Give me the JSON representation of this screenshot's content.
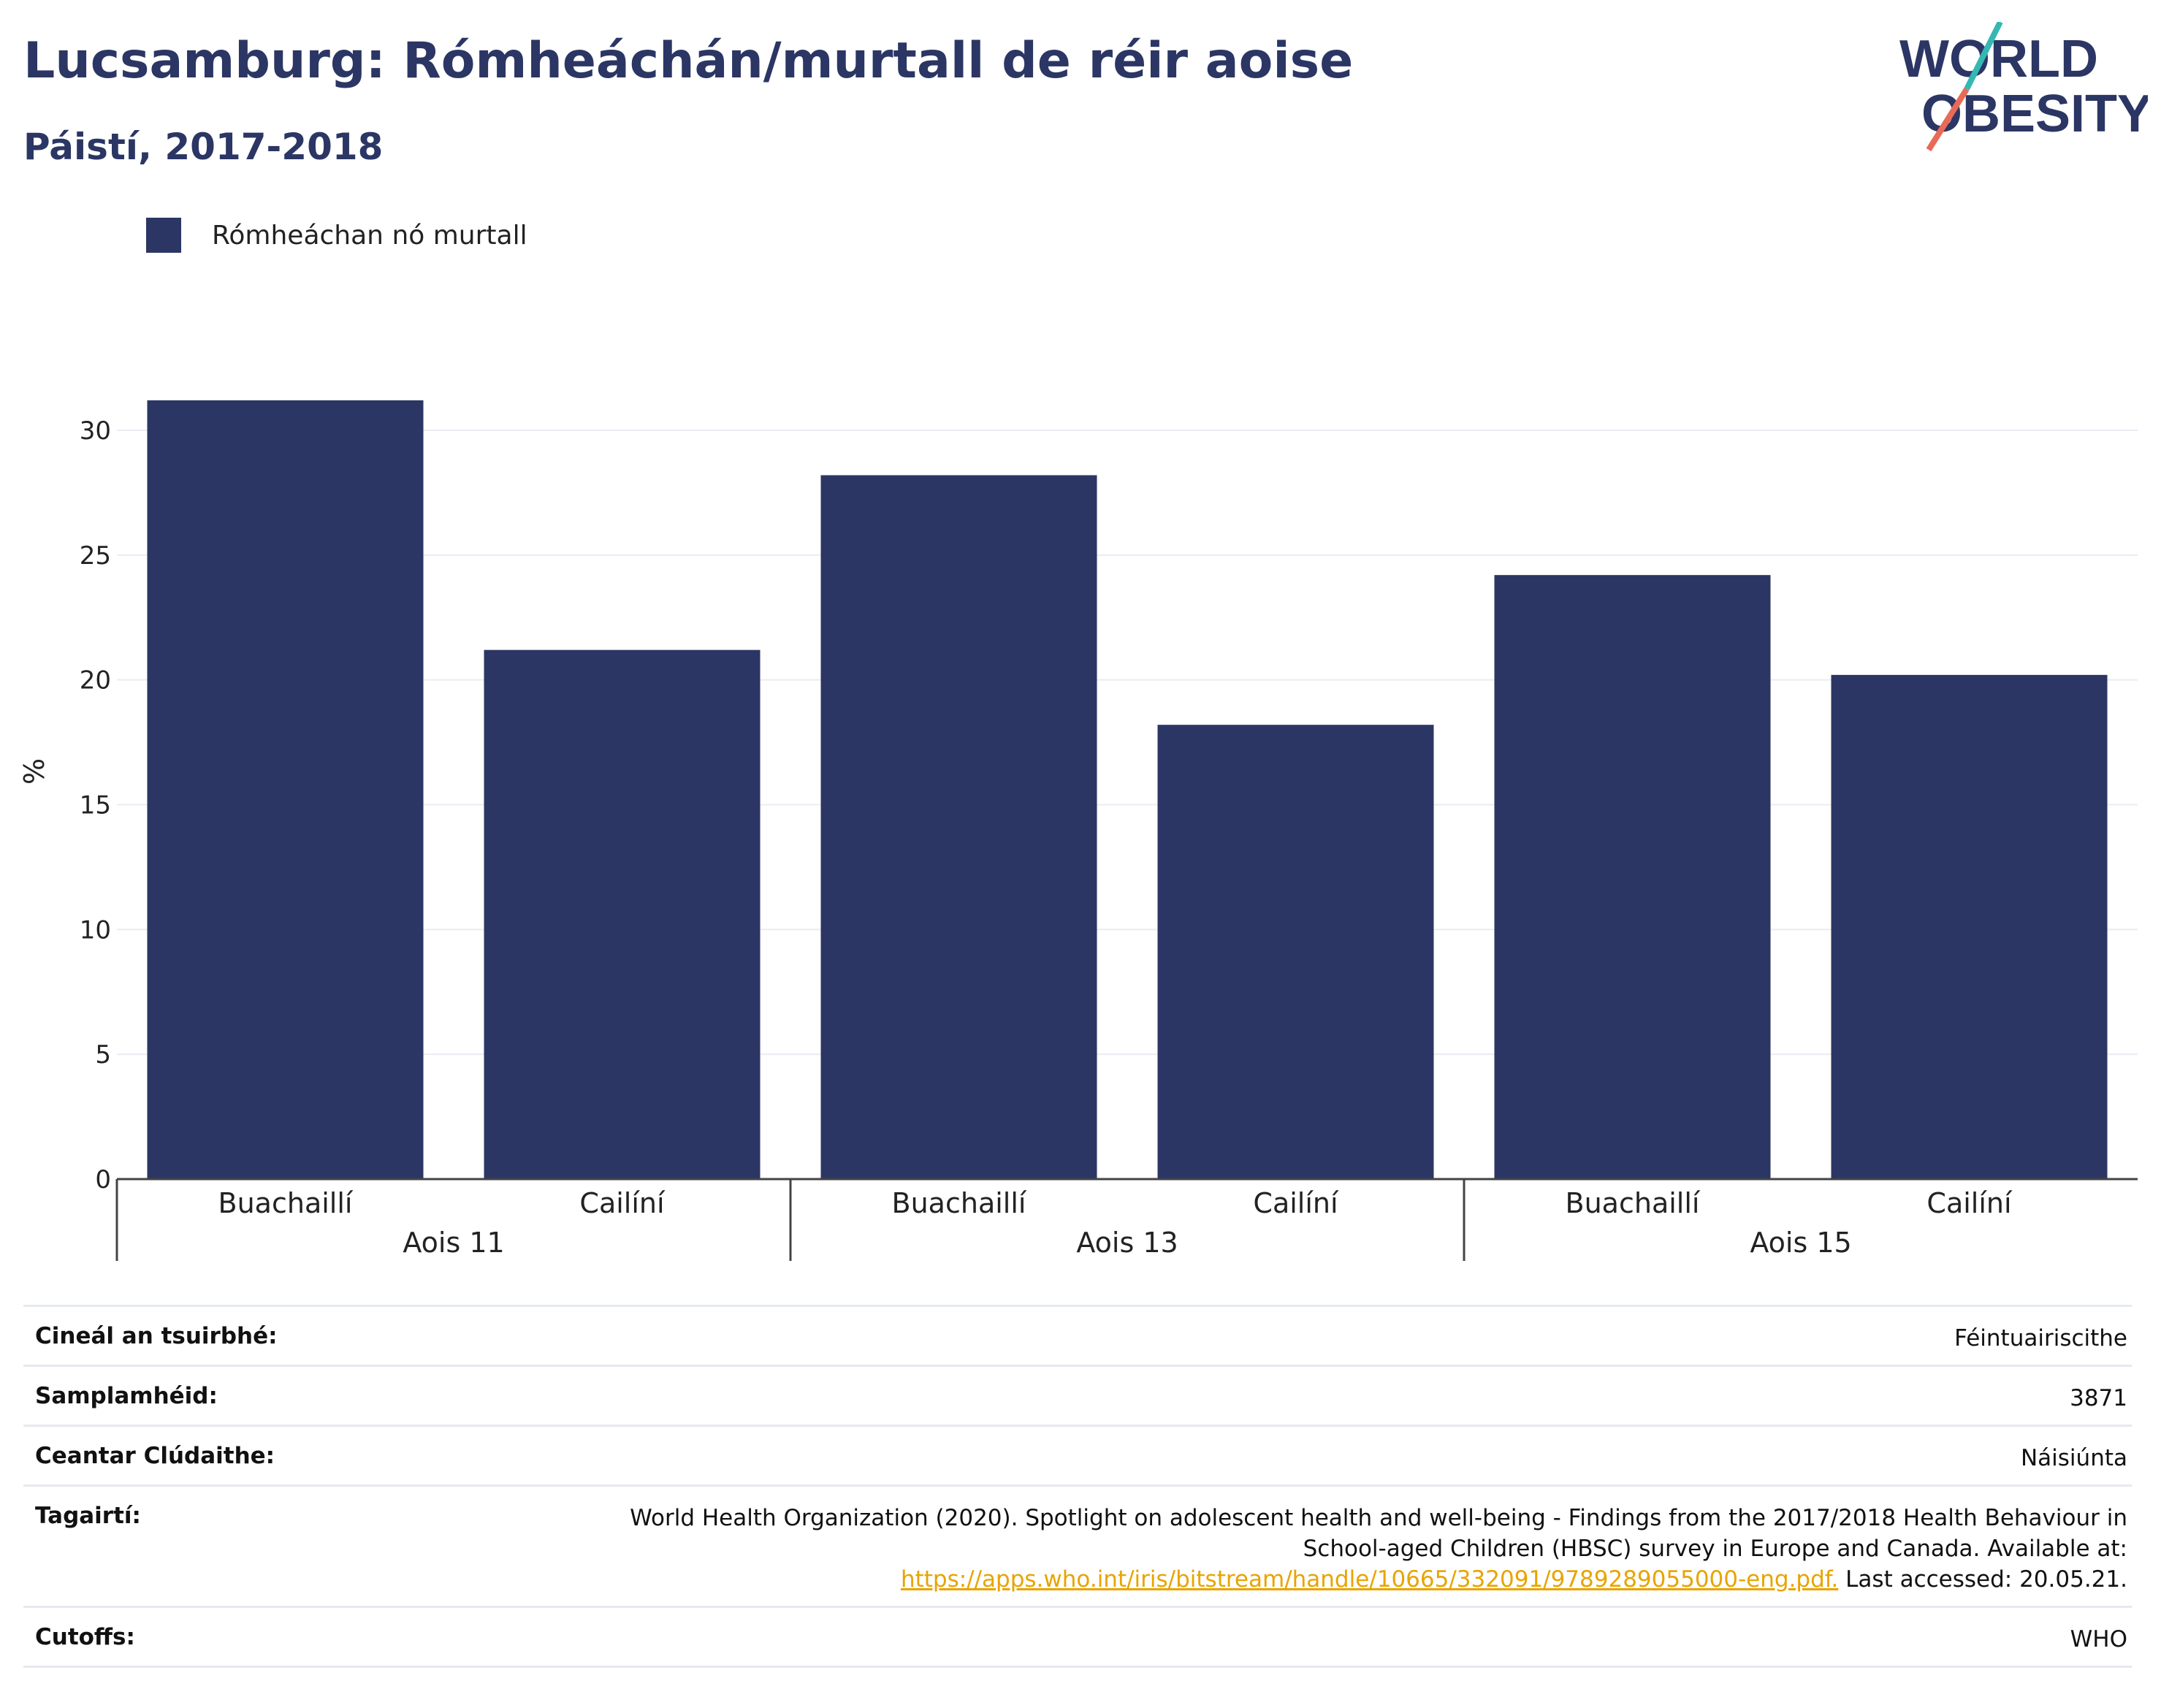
{
  "header": {
    "title": "Lucsamburg: Rómheáchán/murtall de réir aoise",
    "subtitle": "Páistí, 2017-2018"
  },
  "logo": {
    "line1": "WORLD",
    "line2": "OBESITY",
    "colors": {
      "text": "#2b3664",
      "slash_top": "#35b8b3",
      "slash_bottom": "#e86a57"
    }
  },
  "legend": {
    "label": "Rómheáchan nó murtall",
    "color": "#2b3664"
  },
  "chart_data": {
    "type": "bar",
    "ylabel": "%",
    "ylim": [
      0,
      32
    ],
    "yticks": [
      0,
      5,
      10,
      15,
      20,
      25,
      30
    ],
    "grid": true,
    "legend_position": "top-left",
    "bar_color": "#2b3664",
    "groups": [
      {
        "label": "Aois 11",
        "categories": [
          "Buachaillí",
          "Cailíní"
        ],
        "values": [
          31.2,
          21.2
        ]
      },
      {
        "label": "Aois 13",
        "categories": [
          "Buachaillí",
          "Cailíní"
        ],
        "values": [
          28.2,
          18.2
        ]
      },
      {
        "label": "Aois 15",
        "categories": [
          "Buachaillí",
          "Cailíní"
        ],
        "values": [
          24.2,
          20.2
        ]
      }
    ],
    "series": [
      {
        "name": "Rómheáchan nó murtall",
        "values": [
          31.2,
          21.2,
          28.2,
          18.2,
          24.2,
          20.2
        ]
      }
    ]
  },
  "info": {
    "survey_type": {
      "key": "Cineál an tsuirbhé:",
      "value": "Féintuairiscithe"
    },
    "sample_size": {
      "key": "Samplamhéid:",
      "value": "3871"
    },
    "area": {
      "key": "Ceantar Clúdaithe:",
      "value": "Náisiúnta"
    },
    "references": {
      "key": "Tagairtí:",
      "line1": "World Health Organization (2020). Spotlight on adolescent health and well-being - Findings from the 2017/2018 Health Behaviour in",
      "line2": "School-aged Children (HBSC) survey in Europe and Canada. Available at:",
      "link": "https://apps.who.int/iris/bitstream/handle/10665/332091/9789289055000-eng.pdf.",
      "accessed": " Last accessed: 20.05.21."
    },
    "cutoffs": {
      "key": "Cutoffs:",
      "value": "WHO"
    }
  }
}
